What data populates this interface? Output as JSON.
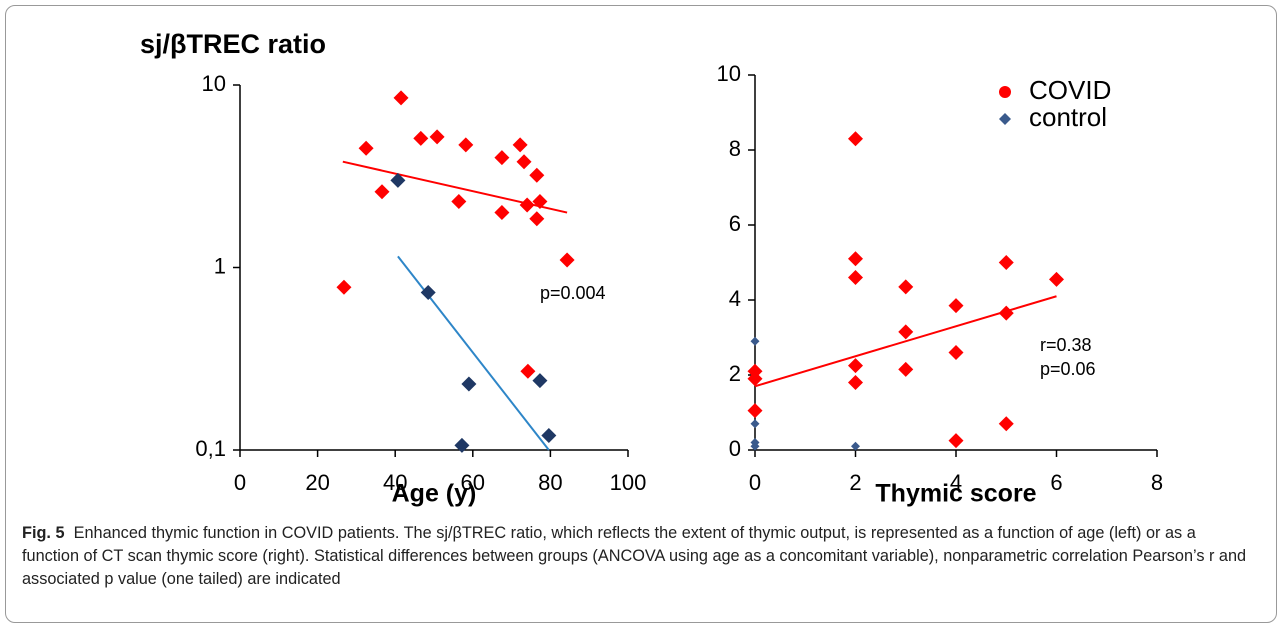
{
  "chart_data": [
    {
      "type": "scatter",
      "title": "sj/βTREC ratio",
      "xlabel": "Age (y)",
      "xlim": [
        0,
        100
      ],
      "xticks": [
        0,
        20,
        40,
        60,
        80,
        100
      ],
      "ylim": [
        0.1,
        10
      ],
      "yscale": "log",
      "yticks": [
        {
          "value": 0.1,
          "label": "0,1"
        },
        1,
        10
      ],
      "series": [
        {
          "color": "#ff0000",
          "marker": "diamond",
          "x": [
            26.8,
            32.5,
            36.6,
            41.5,
            46.6,
            50.8,
            58.2,
            56.4,
            67.5,
            67.5,
            72.2,
            73.2,
            76.5,
            77.3,
            74,
            76.5,
            84.3,
            74.2
          ],
          "values": [
            0.78,
            4.5,
            2.6,
            8.5,
            5.1,
            5.2,
            4.7,
            2.3,
            4.0,
            2.0,
            4.7,
            3.8,
            3.2,
            2.3,
            2.2,
            1.85,
            1.1,
            0.27
          ],
          "trend": {
            "x": [
              26.5,
              84.3
            ],
            "values": [
              3.8,
              2.0
            ]
          }
        },
        {
          "color": "#1f3864",
          "marker": "diamond",
          "trend_color": "#2e86c8",
          "x": [
            40.7,
            48.5,
            59,
            77.3,
            79.6,
            57.2
          ],
          "values": [
            3.0,
            0.73,
            0.23,
            0.24,
            0.12,
            0.106
          ],
          "trend": {
            "x": [
              40.7,
              79.6
            ],
            "values": [
              1.15,
              0.1
            ]
          }
        }
      ],
      "annotations": [
        "p=0.004"
      ]
    },
    {
      "type": "scatter",
      "xlabel": "Thymic score",
      "xlim": [
        0,
        8
      ],
      "xticks": [
        0,
        2,
        4,
        6,
        8
      ],
      "ylim": [
        0,
        10
      ],
      "yticks": [
        0,
        2,
        4,
        6,
        8,
        10
      ],
      "legend": "upper right",
      "series": [
        {
          "name": "COVID",
          "color": "#ff0000",
          "marker": "diamond",
          "x": [
            0,
            0,
            0,
            2,
            2,
            2,
            2,
            2,
            3,
            3,
            3,
            4,
            4,
            4,
            5,
            5,
            5,
            6
          ],
          "values": [
            1.05,
            1.9,
            2.1,
            8.3,
            5.1,
            4.6,
            2.25,
            1.8,
            4.35,
            3.15,
            2.15,
            3.85,
            2.6,
            0.25,
            5.0,
            3.65,
            0.7,
            4.55
          ],
          "trend": {
            "x": [
              0,
              6
            ],
            "values": [
              1.7,
              4.1
            ]
          }
        },
        {
          "name": "control",
          "color": "#3a5a8c",
          "marker": "small-diamond",
          "x": [
            0,
            0,
            0,
            0,
            2
          ],
          "values": [
            2.9,
            0.7,
            0.2,
            0.1,
            0.1
          ]
        }
      ],
      "annotations": [
        "r=0.38",
        "p=0.06"
      ]
    }
  ],
  "caption": {
    "label": "Fig. 5",
    "text": "Enhanced thymic function in COVID patients. The sj/βTREC ratio, which reflects the extent of thymic output, is represented as a function of age (left) or as a function of CT scan thymic score (right). Statistical differences between groups (ANCOVA using age as a concomitant variable), nonparametric correlation Pearson’s r and associated p value (one tailed) are indicated"
  }
}
